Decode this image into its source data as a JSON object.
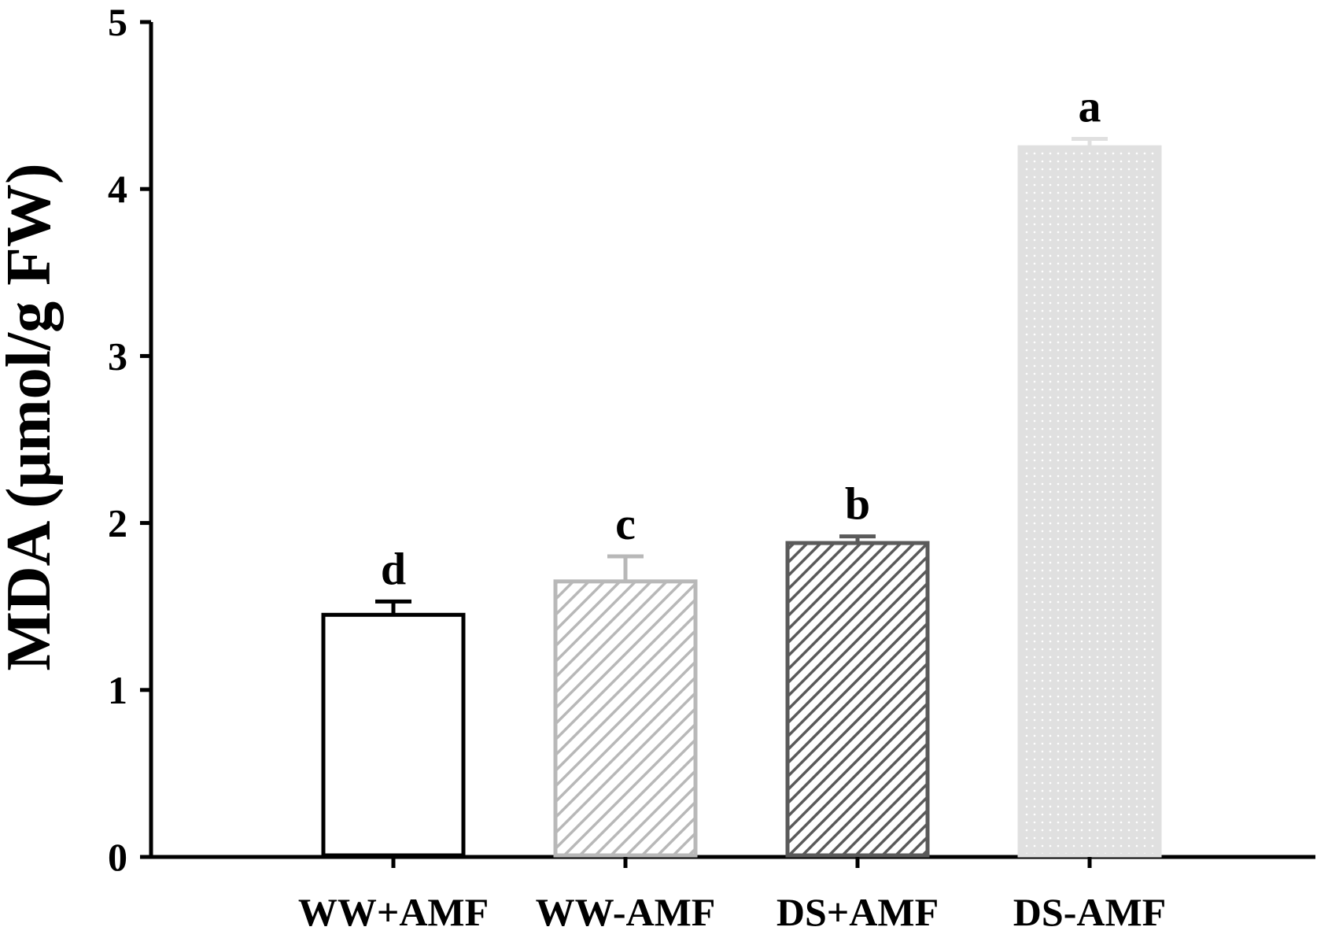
{
  "chart_data": {
    "type": "bar",
    "title": "",
    "xlabel": "",
    "ylabel": "MDA (μmol/g FW)",
    "ylim": [
      0,
      5
    ],
    "yticks": [
      0,
      1,
      2,
      3,
      4,
      5
    ],
    "grid": false,
    "categories": [
      "WW+AMF",
      "WW-AMF",
      "DS+AMF",
      "DS-AMF"
    ],
    "values": [
      1.45,
      1.65,
      1.88,
      4.25
    ],
    "errors": [
      0.08,
      0.15,
      0.04,
      0.05
    ],
    "significance": [
      "d",
      "c",
      "b",
      "a"
    ],
    "styles": [
      {
        "fill": "#ffffff",
        "stroke": "#000000",
        "pattern": "none",
        "pattern_color": "#000000"
      },
      {
        "fill": "#ffffff",
        "stroke": "#b8b8b8",
        "pattern": "diagonal",
        "pattern_color": "#b8b8b8"
      },
      {
        "fill": "#ffffff",
        "stroke": "#5a5a5a",
        "pattern": "diagonal-dense",
        "pattern_color": "#5a5a5a"
      },
      {
        "fill": "#e0e0e0",
        "stroke": "#e0e0e0",
        "pattern": "dots",
        "pattern_color": "#ffffff"
      }
    ]
  }
}
